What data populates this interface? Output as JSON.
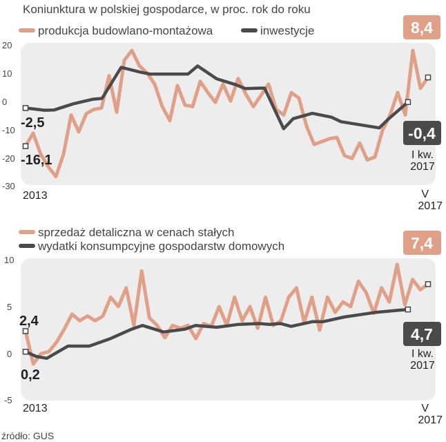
{
  "title": "Koniunktura w polskiej gospodarce, w proc. rok do roku",
  "source": "źródło: GUS",
  "colors": {
    "salmon": "#E0A088",
    "dark": "#4A4A4A",
    "panel_bg": "#EDEDED"
  },
  "chart_data": [
    {
      "type": "line",
      "ylim": [
        -30,
        20
      ],
      "yticks": [
        "20",
        "10",
        "0",
        "-10",
        "-20",
        "-30"
      ],
      "x_start_label": "2013",
      "x_end_label": [
        "V",
        "2017"
      ],
      "series": [
        {
          "name": "produkcja budowlano-montażowa",
          "color": "#E0A088",
          "values": [
            -16.1,
            -11.5,
            -19,
            -23.5,
            -27,
            -19,
            -5,
            -11,
            -4.5,
            -3,
            -2.5,
            9,
            -4,
            14.5,
            18,
            12.5,
            10,
            6,
            -2,
            -7,
            5.5,
            -1.5,
            -2,
            7,
            3,
            -0.5,
            6,
            0,
            8,
            2.5,
            -2,
            2,
            6,
            -3,
            -5,
            3,
            1,
            -9,
            -15.5,
            -14.5,
            -13.5,
            -13,
            -19.5,
            -20.5,
            -15,
            -21,
            -20,
            -10.5,
            -5,
            3,
            -5,
            18,
            4.5,
            8.4
          ],
          "start_label": "-16,1",
          "end_label": "8,4"
        },
        {
          "name": "inwestycje",
          "color": "#4A4A4A",
          "values": [
            -2.5,
            -3.3,
            -3.2,
            -1.0,
            0.6,
            0.9,
            12.0,
            10.3,
            9.6,
            9.6,
            9.6,
            12.5,
            7.9,
            5.8,
            4.4,
            4.6,
            -9.9,
            -6.3,
            -4.4,
            -5.8,
            -7.4,
            -8.5,
            -9.6,
            -6.3,
            -0.4
          ],
          "x_positions": [
            0,
            2,
            3,
            5,
            7,
            8,
            10,
            12,
            13,
            15,
            17,
            18,
            20,
            22,
            23,
            25,
            27,
            28,
            30,
            32,
            33,
            35,
            37,
            38,
            40
          ],
          "x_total": 40,
          "start_label": "-2,5",
          "end_label": "-0,4",
          "end_period": [
            "I kw.",
            "2017"
          ]
        }
      ]
    },
    {
      "type": "line",
      "ylim": [
        -5,
        10
      ],
      "yticks": [
        "10",
        "5",
        "0",
        "-5"
      ],
      "x_start_label": "2013",
      "x_end_label": [
        "V",
        "2017"
      ],
      "series": [
        {
          "name": "sprzedaż detaliczna w cenach stałych",
          "color": "#E0A088",
          "values": [
            2.4,
            -1.1,
            0.0,
            0.2,
            1.2,
            2.6,
            4.2,
            3.5,
            4.0,
            3.5,
            4.0,
            6.0,
            5.0,
            7.0,
            3.0,
            8.8,
            3.8,
            3.0,
            1.7,
            3.0,
            2.7,
            3.0,
            1.6,
            3.2,
            2.9,
            5.0,
            3.0,
            6.0,
            3.5,
            5.0,
            2.7,
            6.0,
            3.0,
            3.5,
            6.0,
            7.0,
            3.3,
            6.0,
            2.5,
            6.0,
            4.4,
            5.5,
            5.0,
            7.7,
            6.5,
            4.3,
            7.0,
            5.5,
            9.5,
            5.2,
            7.9,
            6.8,
            7.4
          ],
          "start_label": "2,4",
          "end_label": "7,4"
        },
        {
          "name": "wydatki konsumpcyjne gospodarstw domowych",
          "color": "#4A4A4A",
          "values": [
            0.2,
            -0.3,
            -0.5,
            0.8,
            0.8,
            1.6,
            2.6,
            3.0,
            2.3,
            2.6,
            3.0,
            2.8,
            3.1,
            3.2,
            3.1,
            3.2,
            2.9,
            3.4,
            3.4,
            3.9,
            4.4,
            4.6,
            4.7
          ],
          "x_positions": [
            0,
            1,
            2,
            4,
            6,
            8,
            10,
            11,
            13,
            15,
            16,
            18,
            20,
            22,
            23,
            24,
            25,
            27,
            28,
            30,
            33,
            35,
            36
          ],
          "x_total": 36,
          "start_label": "0,2",
          "end_label": "4,7",
          "end_period": [
            "I kw.",
            "2017"
          ]
        }
      ]
    }
  ]
}
